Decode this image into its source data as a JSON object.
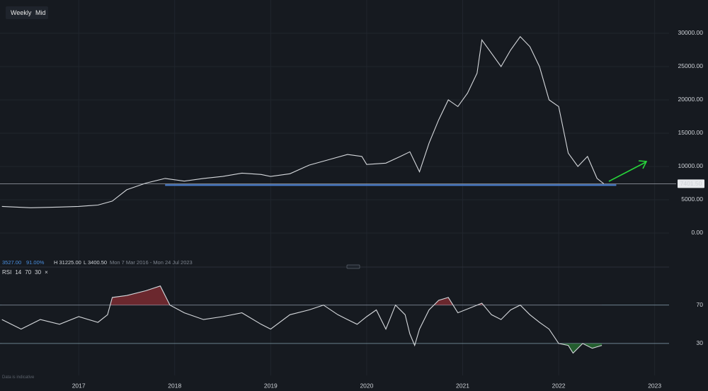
{
  "toolbar": {
    "interval": "Weekly",
    "price_type": "Mid"
  },
  "info": {
    "value": "3527.00",
    "percent": "91.00%",
    "high": "H 31225.00",
    "low": "L 3400.50",
    "range": "Mon 7 Mar 2016 - Mon 24 Jul 2023"
  },
  "footnote": "Data is indicative",
  "chart_data": [
    {
      "type": "line",
      "color": "#d6d9dd",
      "x": [
        2016.2,
        2016.5,
        2016.8,
        2017.0,
        2017.2,
        2017.35,
        2017.5,
        2017.7,
        2017.9,
        2018.1,
        2018.3,
        2018.5,
        2018.7,
        2018.9,
        2019.0,
        2019.2,
        2019.4,
        2019.6,
        2019.8,
        2019.95,
        2020.0,
        2020.2,
        2020.35,
        2020.45,
        2020.55,
        2020.65,
        2020.75,
        2020.85,
        2020.95,
        2021.05,
        2021.15,
        2021.2,
        2021.3,
        2021.4,
        2021.5,
        2021.6,
        2021.7,
        2021.8,
        2021.9,
        2022.0,
        2022.1,
        2022.2,
        2022.3,
        2022.4,
        2022.47
      ],
      "values": [
        4000,
        3800,
        3900,
        4000,
        4200,
        4800,
        6500,
        7500,
        8200,
        7800,
        8200,
        8500,
        9000,
        8800,
        8500,
        8900,
        10200,
        11000,
        11800,
        11500,
        10300,
        10500,
        11500,
        12200,
        9200,
        13500,
        17000,
        20000,
        19000,
        21000,
        24000,
        29000,
        27000,
        25000,
        27500,
        29500,
        28000,
        25000,
        20000,
        19000,
        12000,
        10000,
        11500,
        8200,
        7401.5
      ],
      "xlim": [
        2016.18,
        2023.15
      ],
      "xticks": [
        2017,
        2018,
        2019,
        2020,
        2021,
        2022,
        2023
      ],
      "ylim": [
        -3830,
        35000
      ],
      "yticks": [
        {
          "value": 0,
          "label": "0.00"
        },
        {
          "value": 5000,
          "label": "5000.00"
        },
        {
          "value": 10000,
          "label": "10000.00"
        },
        {
          "value": 15000,
          "label": "15000.00"
        },
        {
          "value": 20000,
          "label": "20000.00"
        },
        {
          "value": 25000,
          "label": "25000.00"
        },
        {
          "value": 30000,
          "label": "30000.00"
        }
      ],
      "current_price": {
        "value": 7401.5,
        "label": "7401.50"
      },
      "support": {
        "value": 7200,
        "x": [
          2017.9,
          2022.6
        ],
        "color": "#4a7fd0"
      },
      "grid": true
    },
    {
      "type": "line",
      "indicator": "RSI",
      "params": [
        14,
        70,
        30
      ],
      "close_icon": "×",
      "color": "#d6d9dd",
      "x": [
        2016.2,
        2016.4,
        2016.6,
        2016.8,
        2017.0,
        2017.2,
        2017.3,
        2017.35,
        2017.5,
        2017.7,
        2017.85,
        2017.95,
        2018.1,
        2018.3,
        2018.5,
        2018.7,
        2018.9,
        2019.0,
        2019.2,
        2019.4,
        2019.55,
        2019.7,
        2019.8,
        2019.9,
        2020.0,
        2020.1,
        2020.2,
        2020.3,
        2020.4,
        2020.45,
        2020.5,
        2020.55,
        2020.65,
        2020.75,
        2020.85,
        2020.95,
        2021.1,
        2021.2,
        2021.3,
        2021.4,
        2021.5,
        2021.6,
        2021.7,
        2021.8,
        2021.9,
        2022.0,
        2022.1,
        2022.15,
        2022.25,
        2022.35,
        2022.45
      ],
      "values": [
        55,
        45,
        55,
        50,
        58,
        52,
        60,
        78,
        80,
        85,
        90,
        70,
        62,
        55,
        58,
        62,
        50,
        45,
        60,
        65,
        70,
        60,
        55,
        50,
        58,
        65,
        45,
        70,
        60,
        40,
        28,
        45,
        65,
        75,
        78,
        62,
        68,
        72,
        60,
        55,
        65,
        70,
        60,
        52,
        45,
        30,
        28,
        20,
        30,
        25,
        28
      ],
      "xlim": [
        2016.18,
        2023.15
      ],
      "ylim": [
        -3.3,
        106
      ],
      "yticks": [
        30,
        70
      ],
      "overbought_color": "#b3343a",
      "oversold_color": "#2f8a3a"
    }
  ]
}
